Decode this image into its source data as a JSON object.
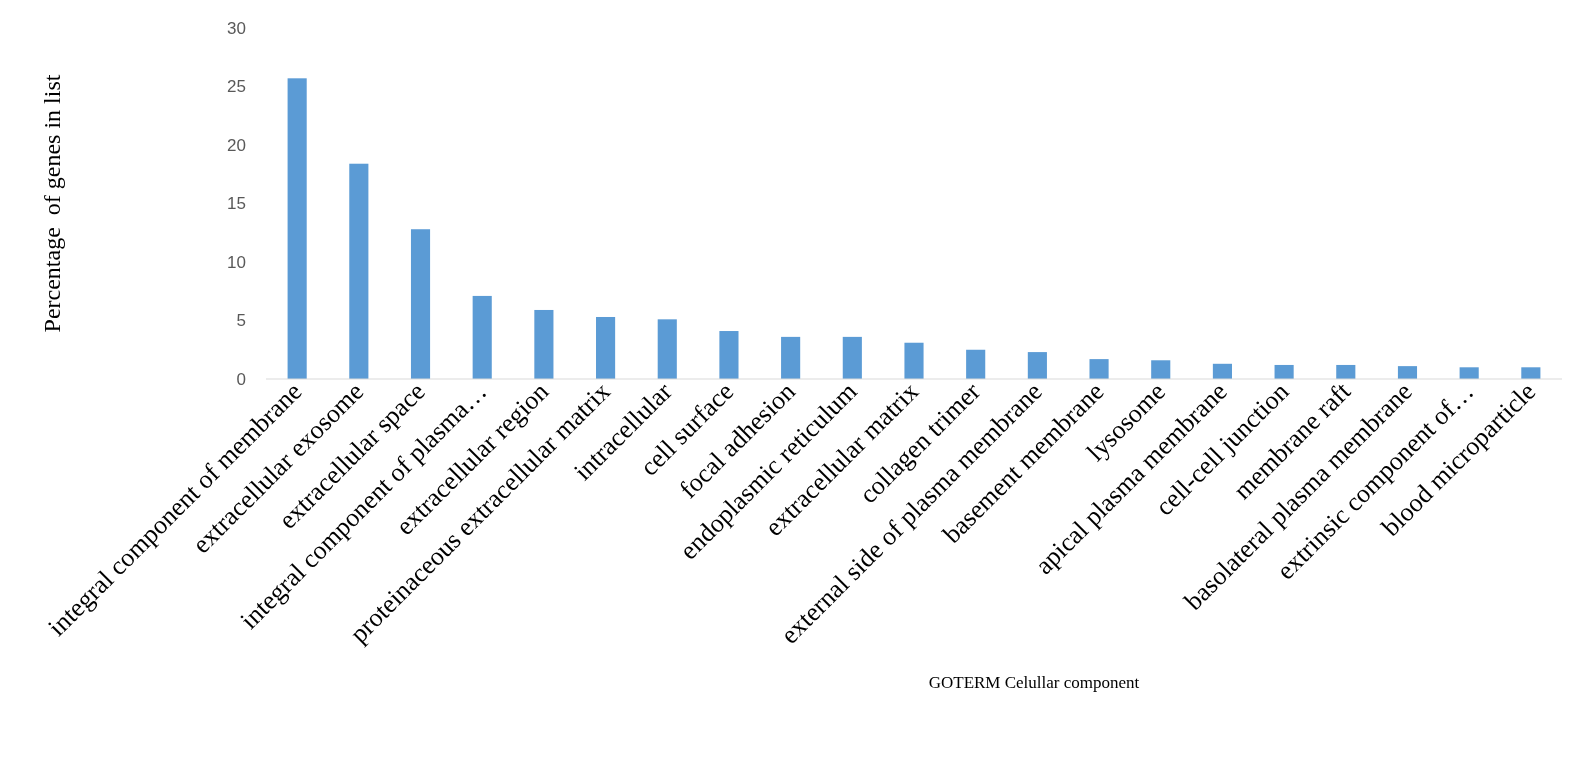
{
  "chart_data": {
    "type": "bar",
    "xlabel": "GOTERM Celullar component",
    "ylabel": "Percentage  of genes in list",
    "categories": [
      "integral component of membrane",
      "extracellular exosome",
      "extracellular space",
      "integral component of plasma…",
      "extracellular region",
      "proteinaceous extracellular matrix",
      "intracellular",
      "cell surface",
      "focal adhesion",
      "endoplasmic reticulum",
      "extracellular matrix",
      "collagen trimer",
      "external side of plasma membrane",
      "basement membrane",
      "lysosome",
      "apical plasma membrane",
      "cell-cell junction",
      "membrane raft",
      "basolateral plasma membrane",
      "extrinsic component of…",
      "blood microparticle"
    ],
    "values": [
      25.7,
      18.4,
      12.8,
      7.1,
      5.9,
      5.3,
      5.1,
      4.1,
      3.6,
      3.6,
      3.1,
      2.5,
      2.3,
      1.7,
      1.6,
      1.3,
      1.2,
      1.2,
      1.1,
      1.0,
      1.0
    ],
    "color": "#5b9bd5",
    "ylim": [
      0,
      30
    ],
    "yticks": [
      0,
      5,
      10,
      15,
      20,
      25,
      30
    ],
    "grid": false
  }
}
